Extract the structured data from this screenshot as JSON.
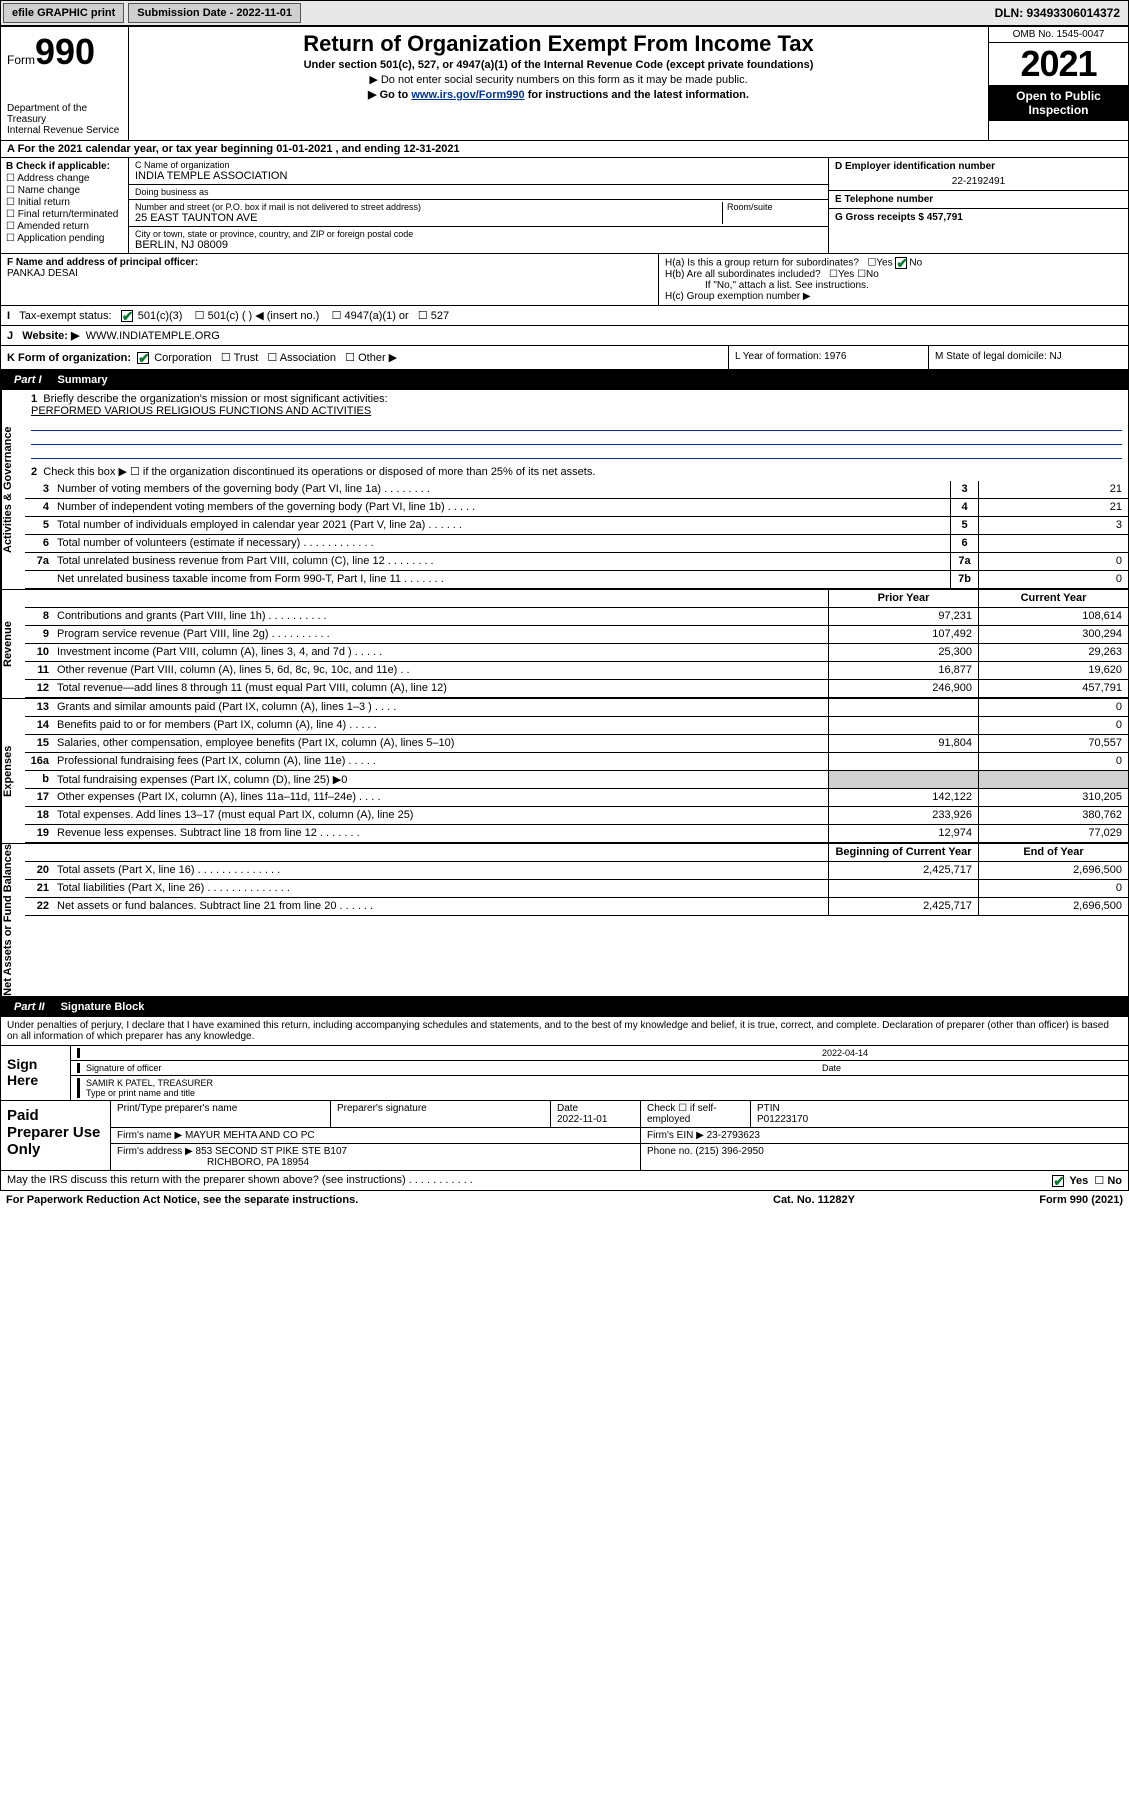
{
  "topbar": {
    "efile": "efile GRAPHIC print",
    "subdate_lbl": "Submission Date - 2022-11-01",
    "dln": "DLN: 93493306014372"
  },
  "header": {
    "form_prefix": "Form",
    "form_no": "990",
    "dept": "Department of the Treasury",
    "irs": "Internal Revenue Service",
    "title": "Return of Organization Exempt From Income Tax",
    "subtitle": "Under section 501(c), 527, or 4947(a)(1) of the Internal Revenue Code (except private foundations)",
    "inst1": "▶ Do not enter social security numbers on this form as it may be made public.",
    "inst2_pre": "▶ Go to ",
    "inst2_link": "www.irs.gov/Form990",
    "inst2_post": " for instructions and the latest information.",
    "omb": "OMB No. 1545-0047",
    "year": "2021",
    "open": "Open to Public Inspection"
  },
  "A": "A For the 2021 calendar year, or tax year beginning 01-01-2021   , and ending 12-31-2021",
  "B": {
    "label": "B Check if applicable:",
    "items": [
      "Address change",
      "Name change",
      "Initial return",
      "Final return/terminated",
      "Amended return",
      "Application pending"
    ]
  },
  "C": {
    "name_lbl": "C Name of organization",
    "name": "INDIA TEMPLE ASSOCIATION",
    "dba_lbl": "Doing business as",
    "dba": "",
    "street_lbl": "Number and street (or P.O. box if mail is not delivered to street address)",
    "room_lbl": "Room/suite",
    "street": "25 EAST TAUNTON AVE",
    "city_lbl": "City or town, state or province, country, and ZIP or foreign postal code",
    "city": "BERLIN, NJ  08009"
  },
  "D": {
    "lbl": "D Employer identification number",
    "val": "22-2192491"
  },
  "E": {
    "lbl": "E Telephone number",
    "val": ""
  },
  "G": {
    "lbl": "G Gross receipts $",
    "val": "457,791"
  },
  "F": {
    "lbl": "F Name and address of principal officer:",
    "val": "PANKAJ DESAI"
  },
  "H": {
    "a": "H(a)  Is this a group return for subordinates?",
    "b": "H(b)  Are all subordinates included?",
    "bno": "If \"No,\" attach a list. See instructions.",
    "c": "H(c)  Group exemption number ▶",
    "yes": "Yes",
    "no": "No"
  },
  "I": {
    "lbl": "Tax-exempt status:",
    "o1": "501(c)(3)",
    "o2": "501(c) (  ) ◀ (insert no.)",
    "o3": "4947(a)(1) or",
    "o4": "527"
  },
  "J": {
    "lbl": "Website: ▶",
    "val": "WWW.INDIATEMPLE.ORG"
  },
  "K": {
    "lbl": "K Form of organization:",
    "o1": "Corporation",
    "o2": "Trust",
    "o3": "Association",
    "o4": "Other ▶"
  },
  "L": {
    "lbl": "L Year of formation: 1976"
  },
  "M": {
    "lbl": "M State of legal domicile: NJ"
  },
  "part1": {
    "num": "Part I",
    "title": "Summary"
  },
  "vlabels": [
    "Activities & Governance",
    "Revenue",
    "Expenses",
    "Net Assets or Fund Balances"
  ],
  "s1": {
    "l1": "Briefly describe the organization's mission or most significant activities:",
    "l1v": "PERFORMED VARIOUS RELIGIOUS FUNCTIONS AND ACTIVITIES",
    "l2": "Check this box ▶ ☐  if the organization discontinued its operations or disposed of more than 25% of its net assets.",
    "rows": [
      {
        "n": "3",
        "t": "Number of voting members of the governing body (Part VI, line 1a)    .    .    .    .    .    .    .    .",
        "b": "3",
        "v": "21"
      },
      {
        "n": "4",
        "t": "Number of independent voting members of the governing body (Part VI, line 1b)   .    .    .    .    .",
        "b": "4",
        "v": "21"
      },
      {
        "n": "5",
        "t": "Total number of individuals employed in calendar year 2021 (Part V, line 2a)   .    .    .    .    .    .",
        "b": "5",
        "v": "3"
      },
      {
        "n": "6",
        "t": "Total number of volunteers (estimate if necessary)   .    .    .    .    .    .    .    .    .    .    .    .",
        "b": "6",
        "v": ""
      },
      {
        "n": "7a",
        "t": "Total unrelated business revenue from Part VIII, column (C), line 12   .    .    .    .    .    .    .    .",
        "b": "7a",
        "v": "0"
      },
      {
        "n": "",
        "t": "Net unrelated business taxable income from Form 990-T, Part I, line 11   .    .    .    .    .    .    .",
        "b": "7b",
        "v": "0"
      }
    ]
  },
  "colhdr": {
    "prior": "Prior Year",
    "current": "Current Year"
  },
  "rev": [
    {
      "n": "8",
      "t": "Contributions and grants (Part VIII, line 1h)    .    .    .    .    .    .    .    .    .    .",
      "p": "97,231",
      "c": "108,614"
    },
    {
      "n": "9",
      "t": "Program service revenue (Part VIII, line 2g)   .    .    .    .    .    .    .    .    .    .",
      "p": "107,492",
      "c": "300,294"
    },
    {
      "n": "10",
      "t": "Investment income (Part VIII, column (A), lines 3, 4, and 7d )   .    .    .    .    .",
      "p": "25,300",
      "c": "29,263"
    },
    {
      "n": "11",
      "t": "Other revenue (Part VIII, column (A), lines 5, 6d, 8c, 9c, 10c, and 11e)   .    .",
      "p": "16,877",
      "c": "19,620"
    },
    {
      "n": "12",
      "t": "Total revenue—add lines 8 through 11 (must equal Part VIII, column (A), line 12)",
      "p": "246,900",
      "c": "457,791"
    }
  ],
  "exp": [
    {
      "n": "13",
      "t": "Grants and similar amounts paid (Part IX, column (A), lines 1–3 )   .    .    .    .",
      "p": "",
      "c": "0"
    },
    {
      "n": "14",
      "t": "Benefits paid to or for members (Part IX, column (A), line 4)   .    .    .    .    .",
      "p": "",
      "c": "0"
    },
    {
      "n": "15",
      "t": "Salaries, other compensation, employee benefits (Part IX, column (A), lines 5–10)",
      "p": "91,804",
      "c": "70,557"
    },
    {
      "n": "16a",
      "t": "Professional fundraising fees (Part IX, column (A), line 11e)   .    .    .    .    .",
      "p": "",
      "c": "0"
    },
    {
      "n": "b",
      "t": "Total fundraising expenses (Part IX, column (D), line 25) ▶0",
      "p": "grey",
      "c": "grey"
    },
    {
      "n": "17",
      "t": "Other expenses (Part IX, column (A), lines 11a–11d, 11f–24e)   .    .    .    .",
      "p": "142,122",
      "c": "310,205"
    },
    {
      "n": "18",
      "t": "Total expenses. Add lines 13–17 (must equal Part IX, column (A), line 25)",
      "p": "233,926",
      "c": "380,762"
    },
    {
      "n": "19",
      "t": "Revenue less expenses. Subtract line 18 from line 12   .    .    .    .    .    .    .",
      "p": "12,974",
      "c": "77,029"
    }
  ],
  "colhdr2": {
    "begin": "Beginning of Current Year",
    "end": "End of Year"
  },
  "net": [
    {
      "n": "20",
      "t": "Total assets (Part X, line 16)   .    .    .    .    .    .    .    .    .    .    .    .    .    .",
      "p": "2,425,717",
      "c": "2,696,500"
    },
    {
      "n": "21",
      "t": "Total liabilities (Part X, line 26)   .    .    .    .    .    .    .    .    .    .    .    .    .    .",
      "p": "",
      "c": "0"
    },
    {
      "n": "22",
      "t": "Net assets or fund balances. Subtract line 21 from line 20   .    .    .    .    .    .",
      "p": "2,425,717",
      "c": "2,696,500"
    }
  ],
  "part2": {
    "num": "Part II",
    "title": "Signature Block"
  },
  "decl": "Under penalties of perjury, I declare that I have examined this return, including accompanying schedules and statements, and to the best of my knowledge and belief, it is true, correct, and complete. Declaration of preparer (other than officer) is based on all information of which preparer has any knowledge.",
  "sign": {
    "lbl": "Sign Here",
    "sig_lbl": "Signature of officer",
    "date_lbl": "Date",
    "date": "2022-04-14",
    "name": "SAMIR K PATEL, TREASURER",
    "name_lbl": "Type or print name and title"
  },
  "prep": {
    "lbl": "Paid Preparer Use Only",
    "h": [
      "Print/Type preparer's name",
      "Preparer's signature",
      "Date",
      "",
      "PTIN"
    ],
    "r1": [
      "",
      "",
      "2022-11-01",
      "Check ☐ if self-employed",
      "P01223170"
    ],
    "firm_lbl": "Firm's name    ▶",
    "firm": "MAYUR MEHTA AND CO PC",
    "ein_lbl": "Firm's EIN ▶",
    "ein": "23-2793623",
    "addr_lbl": "Firm's address ▶",
    "addr": "853 SECOND ST PIKE STE B107",
    "addr2": "RICHBORO, PA  18954",
    "phone_lbl": "Phone no.",
    "phone": "(215) 396-2950"
  },
  "foot": {
    "q": "May the IRS discuss this return with the preparer shown above? (see instructions)   .    .    .    .    .    .    .    .    .    .    .",
    "yes": "Yes",
    "no": "No"
  },
  "bottom": {
    "pra": "For Paperwork Reduction Act Notice, see the separate instructions.",
    "cat": "Cat. No. 11282Y",
    "form": "Form 990 (2021)"
  }
}
